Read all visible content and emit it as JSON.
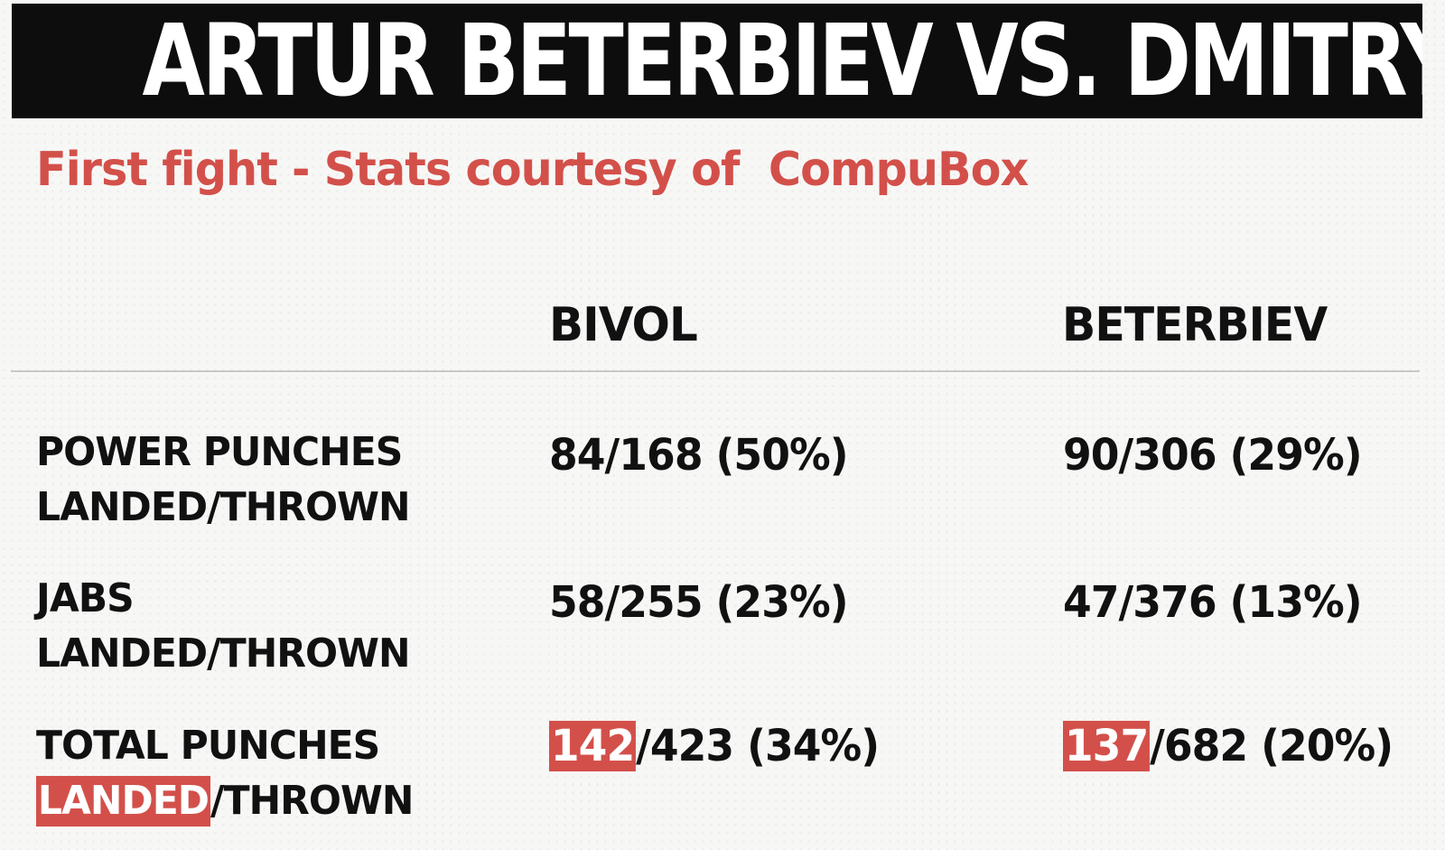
{
  "title": "ARTUR BETERBIEV VS. DMITRY BIVOL",
  "subtitle": "First fight - Stats courtesy of  CompuBox",
  "columns": {
    "bivol": "BIVOL",
    "beterbiev": "BETERBIEV"
  },
  "rows": [
    {
      "label_line1": "POWER PUNCHES",
      "label_line2": "LANDED/THROWN",
      "bivol": "84/168 (50%)",
      "beterbiev": "90/306 (29%)"
    },
    {
      "label_line1": "JABS",
      "label_line2": "LANDED/THROWN",
      "bivol": "58/255 (23%)",
      "beterbiev": "47/376 (13%)"
    },
    {
      "label_line1": "TOTAL PUNCHES",
      "label_line2_highlight": "LANDED",
      "label_line2_rest": "/THROWN",
      "bivol_highlight": "142",
      "bivol_rest": "/423 (34%)",
      "beterbiev_highlight": "137",
      "beterbiev_rest": "/682 (20%)"
    }
  ],
  "colors": {
    "accent_red": "#d3504a",
    "title_bar_bg": "#0d0d0d",
    "text_dark": "#111111",
    "page_bg": "#f7f7f6"
  }
}
